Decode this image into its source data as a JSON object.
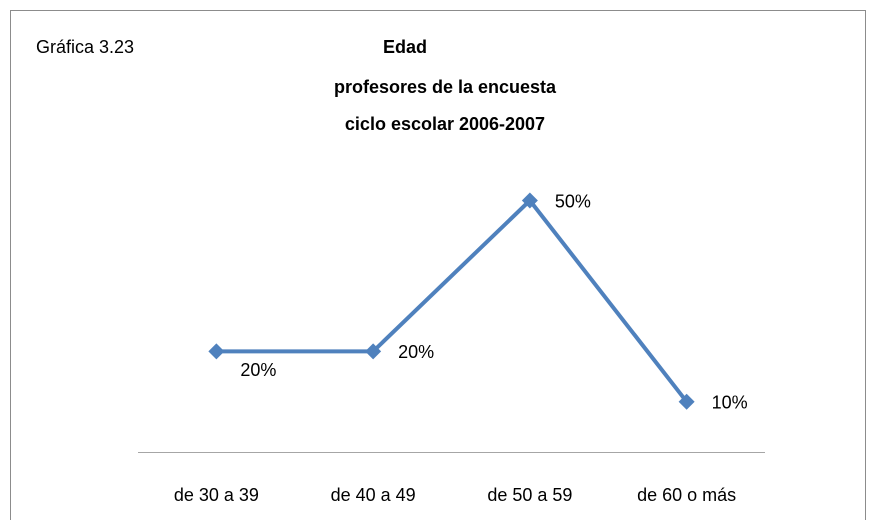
{
  "chart_data": {
    "type": "line",
    "annotation": "Gráfica 3.23",
    "title": "Edad",
    "subtitle": [
      "profesores de la encuesta",
      "ciclo escolar 2006-2007"
    ],
    "categories": [
      "de 30 a 39",
      "de 40 a 49",
      "de 50 a 59",
      "de 60 o más"
    ],
    "values": [
      20,
      20,
      50,
      10
    ],
    "value_labels": [
      "20%",
      "20%",
      "50%",
      "10%"
    ],
    "color": "#4f81bd"
  }
}
